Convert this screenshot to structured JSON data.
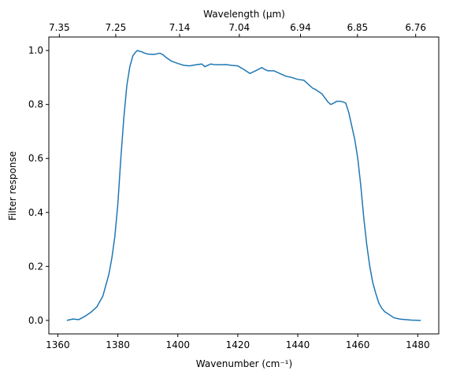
{
  "chart_data": {
    "type": "line",
    "title": "",
    "xlabel": "Wavenumber (cm⁻¹)",
    "ylabel": "Filter response",
    "top_xlabel": "Wavelength (μm)",
    "xlim": [
      1357,
      1487
    ],
    "ylim": [
      -0.05,
      1.05
    ],
    "xticks": [
      1360,
      1380,
      1400,
      1420,
      1440,
      1460,
      1480
    ],
    "xtick_labels": [
      "1360",
      "1380",
      "1400",
      "1420",
      "1440",
      "1460",
      "1480"
    ],
    "yticks": [
      0.0,
      0.2,
      0.4,
      0.6,
      0.8,
      1.0
    ],
    "ytick_labels": [
      "0.0",
      "0.2",
      "0.4",
      "0.6",
      "0.8",
      "1.0"
    ],
    "top_ticks": [
      1360.5,
      1379.3,
      1400.6,
      1420.5,
      1440.9,
      1459.9,
      1479.3
    ],
    "top_tick_labels": [
      "7.35",
      "7.25",
      "7.14",
      "7.04",
      "6.94",
      "6.85",
      "6.76"
    ],
    "grid": false,
    "series": [
      {
        "color": "#1f77b4",
        "x": [
          1363,
          1365,
          1367,
          1369,
          1371,
          1373,
          1375,
          1377,
          1378,
          1379,
          1380,
          1381,
          1382,
          1383,
          1384,
          1385,
          1386,
          1386.5,
          1387,
          1388,
          1389,
          1390,
          1392,
          1394,
          1395,
          1396,
          1398,
          1400,
          1402,
          1404,
          1406,
          1408,
          1409,
          1410,
          1411,
          1412,
          1414,
          1416,
          1418,
          1420,
          1422,
          1424,
          1426,
          1428,
          1429,
          1430,
          1432,
          1434,
          1436,
          1438,
          1440,
          1442,
          1444,
          1445,
          1446,
          1448,
          1449,
          1450,
          1451,
          1452,
          1453,
          1454,
          1455,
          1456,
          1457,
          1458,
          1459,
          1460,
          1461,
          1462,
          1463,
          1464,
          1465,
          1466,
          1467,
          1468,
          1469,
          1470,
          1472,
          1474,
          1476,
          1478,
          1481
        ],
        "y": [
          0.0,
          0.005,
          0.003,
          0.015,
          0.03,
          0.05,
          0.09,
          0.17,
          0.23,
          0.31,
          0.43,
          0.6,
          0.75,
          0.87,
          0.94,
          0.98,
          0.995,
          1.0,
          0.998,
          0.995,
          0.99,
          0.987,
          0.985,
          0.99,
          0.985,
          0.975,
          0.96,
          0.952,
          0.945,
          0.943,
          0.947,
          0.95,
          0.94,
          0.945,
          0.95,
          0.948,
          0.947,
          0.948,
          0.945,
          0.943,
          0.93,
          0.915,
          0.925,
          0.937,
          0.93,
          0.925,
          0.925,
          0.915,
          0.905,
          0.9,
          0.893,
          0.89,
          0.87,
          0.86,
          0.855,
          0.84,
          0.825,
          0.81,
          0.8,
          0.805,
          0.812,
          0.812,
          0.81,
          0.805,
          0.77,
          0.72,
          0.67,
          0.6,
          0.5,
          0.38,
          0.28,
          0.2,
          0.14,
          0.1,
          0.065,
          0.045,
          0.032,
          0.025,
          0.01,
          0.005,
          0.003,
          0.001,
          0.0
        ]
      }
    ]
  }
}
